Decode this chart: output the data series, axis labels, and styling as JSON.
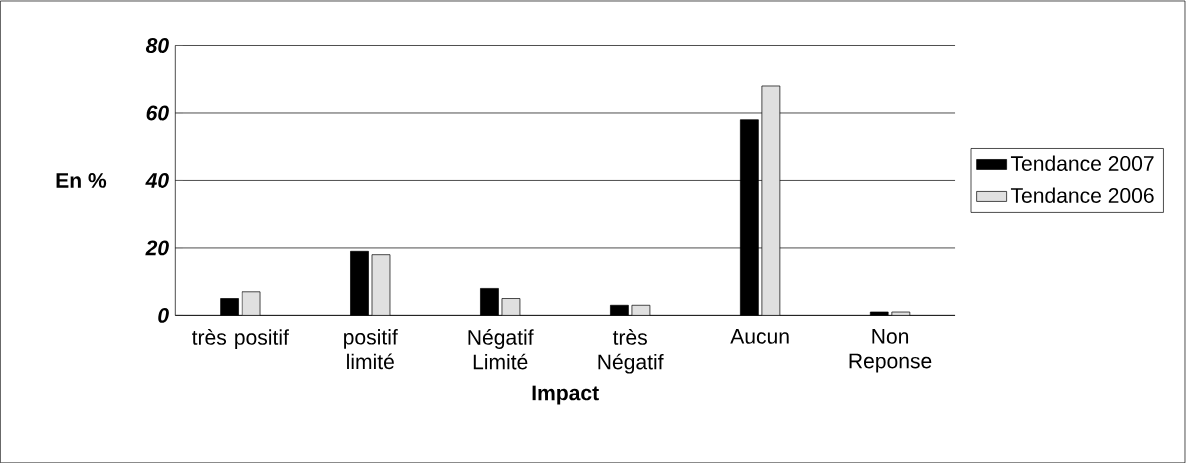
{
  "chart_data": {
    "type": "bar",
    "xlabel": "Impact",
    "ylabel": "En %",
    "categories": [
      "très positif",
      "positif limité",
      "Négatif Limité",
      "très Négatif",
      "Aucun",
      "Non Reponse"
    ],
    "series": [
      {
        "name": "Tendance 2007",
        "color": "#000000",
        "values": [
          5,
          19,
          8,
          3,
          58,
          1
        ]
      },
      {
        "name": "Tendance 2006",
        "color": "#e0e0e0",
        "values": [
          7,
          18,
          5,
          3,
          68,
          1
        ]
      }
    ],
    "ylim": [
      0,
      80
    ],
    "yticks": [
      0,
      20,
      40,
      60,
      80
    ],
    "grid": "y",
    "legend": "right"
  }
}
